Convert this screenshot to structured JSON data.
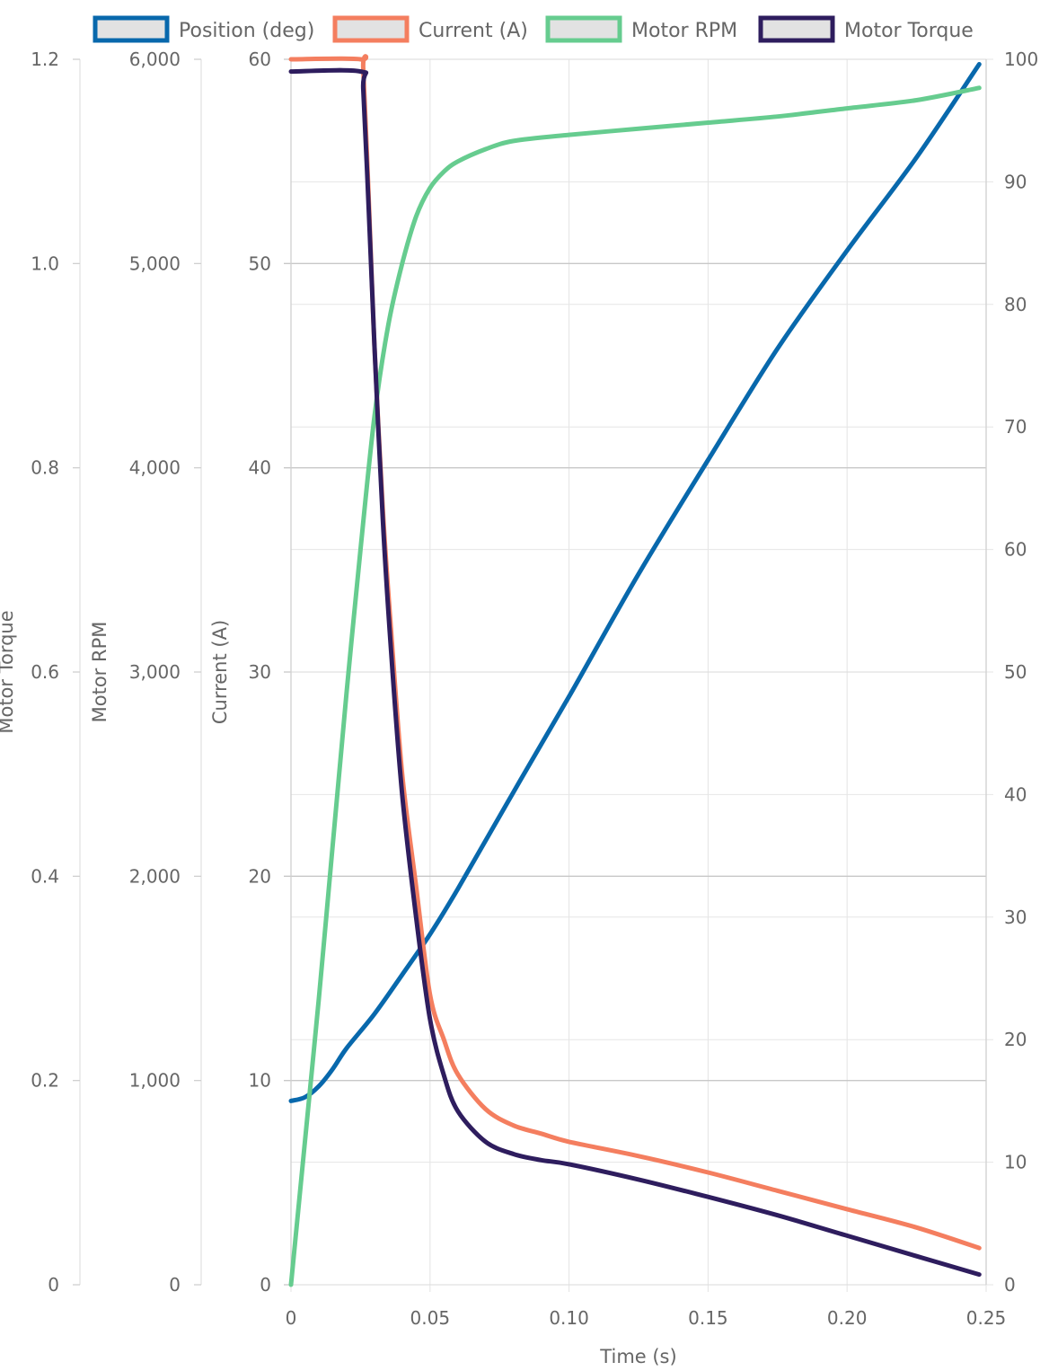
{
  "chart_data": {
    "type": "line",
    "xlabel": "Time (s)",
    "xlim": [
      0,
      0.25
    ],
    "x_ticks": [
      "0",
      "0.05",
      "0.10",
      "0.15",
      "0.20",
      "0.25"
    ],
    "grid": true,
    "legend_position": "top",
    "axes": {
      "torque": {
        "label": "Motor Torque",
        "ylim": [
          0,
          1.2
        ],
        "ticks": [
          "0",
          "0.2",
          "0.4",
          "0.6",
          "0.8",
          "1.0",
          "1.2"
        ]
      },
      "rpm": {
        "label": "Motor RPM",
        "ylim": [
          0,
          6000
        ],
        "ticks": [
          "0",
          "1,000",
          "2,000",
          "3,000",
          "4,000",
          "5,000",
          "6,000"
        ]
      },
      "current": {
        "label": "Current (A)",
        "ylim": [
          0,
          60
        ],
        "ticks": [
          "0",
          "10",
          "20",
          "30",
          "40",
          "50",
          "60"
        ]
      },
      "position": {
        "label": "",
        "ylim": [
          0,
          100
        ],
        "ticks": [
          "0",
          "10",
          "20",
          "30",
          "40",
          "50",
          "60",
          "70",
          "80",
          "90",
          "100"
        ]
      }
    },
    "series": [
      {
        "name": "Position (deg)",
        "axis": "position",
        "color": "#0868ac",
        "x": [
          0,
          0.005,
          0.01,
          0.015,
          0.02,
          0.03,
          0.04,
          0.05,
          0.06,
          0.08,
          0.1,
          0.125,
          0.15,
          0.175,
          0.2,
          0.225,
          0.2475
        ],
        "y": [
          15,
          15.3,
          16.2,
          17.6,
          19.3,
          22.1,
          25.3,
          28.6,
          32.3,
          40.2,
          48.0,
          58.0,
          67.3,
          76.4,
          84.4,
          92.0,
          99.6
        ]
      },
      {
        "name": "Current (A)",
        "axis": "current",
        "color": "#f47e5f",
        "x": [
          0,
          0.025,
          0.026,
          0.028,
          0.03,
          0.033,
          0.036,
          0.04,
          0.045,
          0.05,
          0.055,
          0.06,
          0.07,
          0.08,
          0.09,
          0.1,
          0.125,
          0.15,
          0.175,
          0.2,
          0.225,
          0.2475
        ],
        "y": [
          60,
          60,
          59.5,
          53,
          46,
          38,
          32,
          25,
          19.5,
          14.2,
          12,
          10.3,
          8.6,
          7.8,
          7.4,
          7.0,
          6.3,
          5.5,
          4.6,
          3.7,
          2.8,
          1.8
        ]
      },
      {
        "name": "Motor RPM",
        "axis": "rpm",
        "color": "#66cc8f",
        "x": [
          0,
          0.005,
          0.01,
          0.015,
          0.02,
          0.025,
          0.03,
          0.035,
          0.04,
          0.045,
          0.05,
          0.055,
          0.06,
          0.07,
          0.08,
          0.1,
          0.125,
          0.15,
          0.175,
          0.2,
          0.225,
          0.2475
        ],
        "y": [
          0,
          700,
          1400,
          2150,
          2900,
          3600,
          4250,
          4700,
          5000,
          5230,
          5370,
          5450,
          5500,
          5560,
          5600,
          5630,
          5660,
          5690,
          5720,
          5760,
          5800,
          5860
        ]
      },
      {
        "name": "Motor Torque",
        "axis": "torque",
        "color": "#2e1d5e",
        "x": [
          0,
          0.025,
          0.026,
          0.028,
          0.03,
          0.033,
          0.036,
          0.04,
          0.045,
          0.05,
          0.055,
          0.06,
          0.07,
          0.08,
          0.09,
          0.1,
          0.125,
          0.15,
          0.175,
          0.2,
          0.225,
          0.2475
        ],
        "y": [
          1.188,
          1.188,
          1.17,
          1.05,
          0.92,
          0.75,
          0.62,
          0.48,
          0.36,
          0.26,
          0.205,
          0.17,
          0.14,
          0.128,
          0.122,
          0.118,
          0.103,
          0.086,
          0.068,
          0.048,
          0.028,
          0.01
        ]
      }
    ]
  }
}
